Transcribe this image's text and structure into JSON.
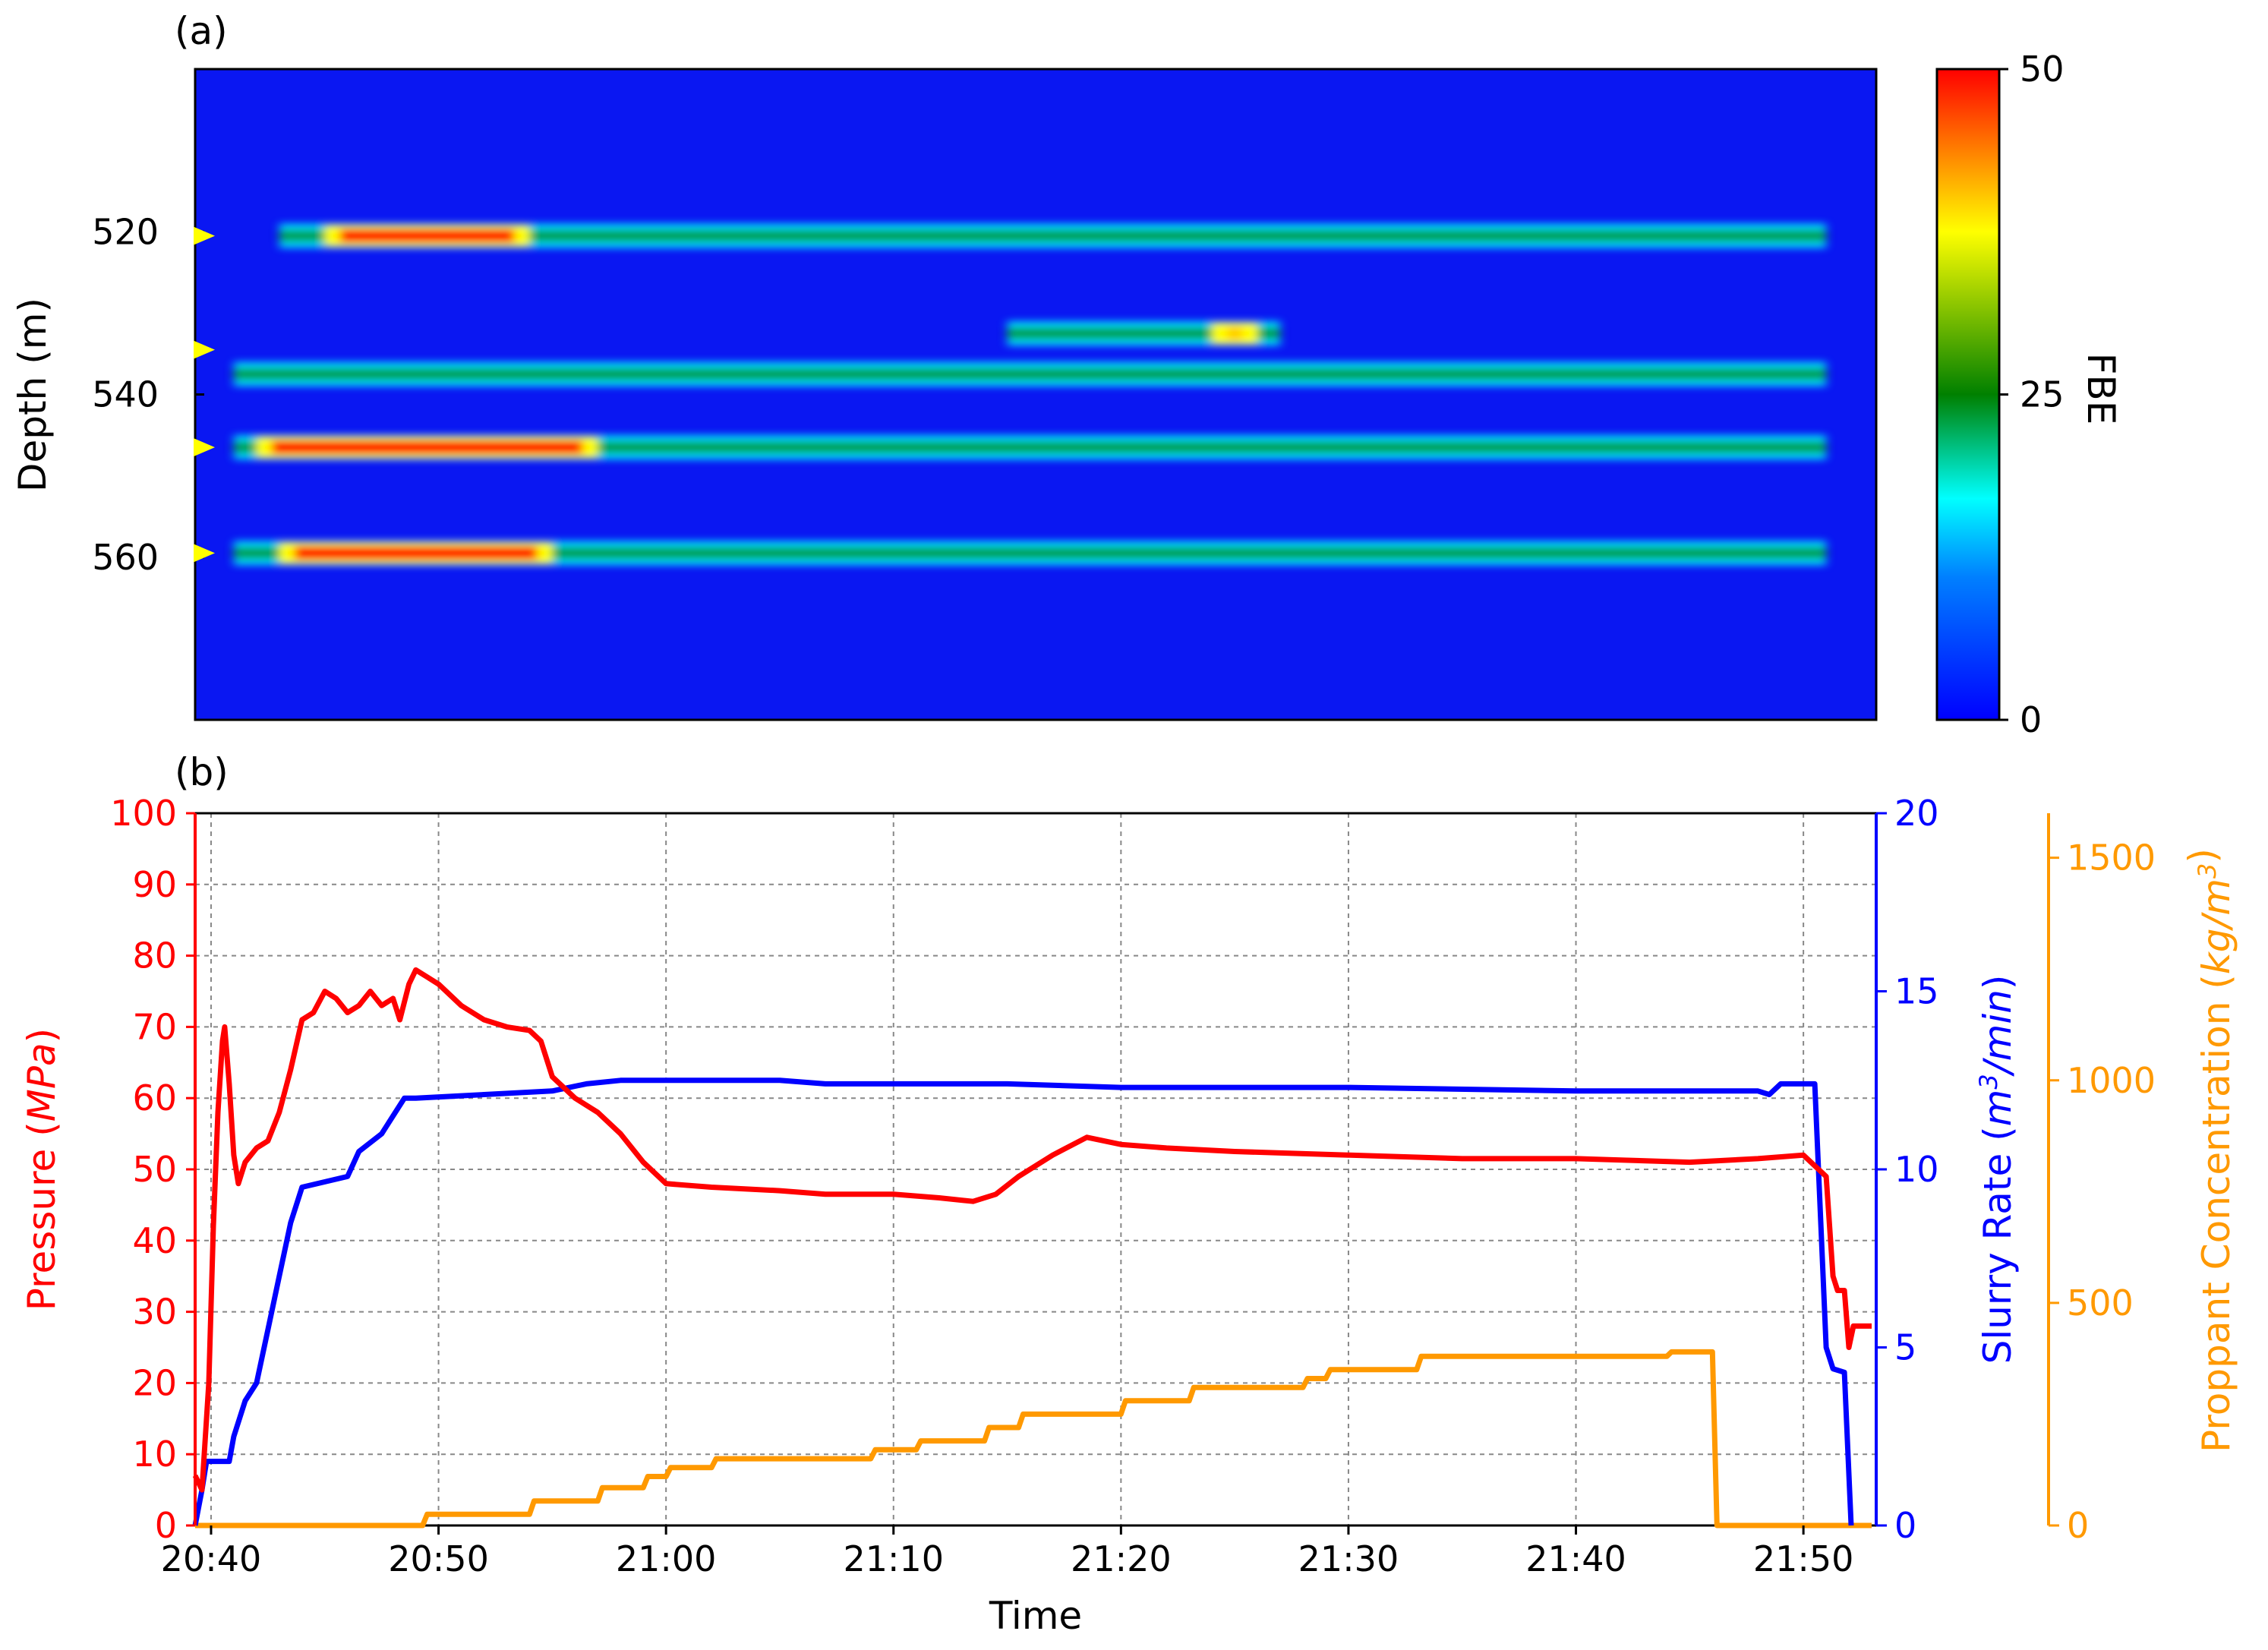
{
  "panel_a_label": "(a)",
  "panel_b_label": "(b)",
  "chart_data": [
    {
      "type": "heatmap",
      "panel": "(a)",
      "ylabel": "Depth (m)",
      "yticks": [
        "520",
        "540",
        "560"
      ],
      "ylim": [
        580,
        500
      ],
      "colorbar": {
        "label": "FBE",
        "ticks": [
          "50",
          "25",
          "0"
        ],
        "range": [
          0,
          50
        ]
      },
      "time_range": [
        "20:39",
        "21:53"
      ],
      "markers_depth_m": [
        520.5,
        534.5,
        546.5,
        559.5
      ],
      "bands": [
        {
          "depth_m": 520.5,
          "start": "20:43",
          "end": "21:51",
          "peak": "20:45-20:54",
          "peak_value": 50
        },
        {
          "depth_m": 532.5,
          "start": "21:15",
          "end": "21:27",
          "peak": "21:24-21:26",
          "peak_value": 40
        },
        {
          "depth_m": 537.5,
          "start": "20:41",
          "end": "21:51",
          "peak_value": 25
        },
        {
          "depth_m": 546.5,
          "start": "20:41",
          "end": "21:51",
          "peak": "20:42-20:57",
          "peak_value": 50
        },
        {
          "depth_m": 559.5,
          "start": "20:41",
          "end": "21:51",
          "peak": "20:43-20:55",
          "peak_value": 50
        }
      ]
    },
    {
      "type": "line",
      "panel": "(b)",
      "xlabel": "Time",
      "xticks": [
        "20:40",
        "20:50",
        "21:00",
        "21:10",
        "21:20",
        "21:30",
        "21:40",
        "21:50"
      ],
      "grid": true,
      "series": [
        {
          "color": "#ff0000",
          "axis_label": "Pressure",
          "axis_unit": "(MPa)",
          "ylim": [
            0,
            100
          ],
          "yticks": [
            "0",
            "10",
            "20",
            "30",
            "40",
            "50",
            "60",
            "70",
            "80",
            "90",
            "100"
          ],
          "points": [
            [
              "20:39.3",
              7
            ],
            [
              "20:39.6",
              5
            ],
            [
              "20:39.9",
              20
            ],
            [
              "20:40.1",
              42
            ],
            [
              "20:40.3",
              58
            ],
            [
              "20:40.5",
              68
            ],
            [
              "20:40.6",
              70
            ],
            [
              "20:40.8",
              62
            ],
            [
              "20:41.0",
              52
            ],
            [
              "20:41.2",
              48
            ],
            [
              "20:41.5",
              51
            ],
            [
              "20:42.0",
              53
            ],
            [
              "20:42.5",
              54
            ],
            [
              "20:43.0",
              58
            ],
            [
              "20:43.5",
              64
            ],
            [
              "20:44.0",
              71
            ],
            [
              "20:44.5",
              72
            ],
            [
              "20:45.0",
              75
            ],
            [
              "20:45.5",
              74
            ],
            [
              "20:46.0",
              72
            ],
            [
              "20:46.5",
              73
            ],
            [
              "20:47.0",
              75
            ],
            [
              "20:47.5",
              73
            ],
            [
              "20:48.0",
              74
            ],
            [
              "20:48.3",
              71
            ],
            [
              "20:48.7",
              76
            ],
            [
              "20:49.0",
              78
            ],
            [
              "20:49.5",
              77
            ],
            [
              "20:50.0",
              76
            ],
            [
              "20:51.0",
              73
            ],
            [
              "20:52.0",
              71
            ],
            [
              "20:53.0",
              70
            ],
            [
              "20:54.0",
              69.5
            ],
            [
              "20:54.5",
              68
            ],
            [
              "20:55.0",
              63
            ],
            [
              "20:56.0",
              60
            ],
            [
              "20:57.0",
              58
            ],
            [
              "20:58.0",
              55
            ],
            [
              "20:59.0",
              51
            ],
            [
              "21:00.0",
              48
            ],
            [
              "21:02.0",
              47.5
            ],
            [
              "21:05.0",
              47
            ],
            [
              "21:07.0",
              46.5
            ],
            [
              "21:10.0",
              46.5
            ],
            [
              "21:12.0",
              46
            ],
            [
              "21:13.5",
              45.5
            ],
            [
              "21:14.5",
              46.5
            ],
            [
              "21:15.5",
              49
            ],
            [
              "21:17.0",
              52
            ],
            [
              "21:18.5",
              54.5
            ],
            [
              "21:20.0",
              53.5
            ],
            [
              "21:22.0",
              53
            ],
            [
              "21:25.0",
              52.5
            ],
            [
              "21:30.0",
              52
            ],
            [
              "21:35.0",
              51.5
            ],
            [
              "21:40.0",
              51.5
            ],
            [
              "21:45.0",
              51
            ],
            [
              "21:48.0",
              51.5
            ],
            [
              "21:50.0",
              52
            ],
            [
              "21:51.0",
              49
            ],
            [
              "21:51.3",
              35
            ],
            [
              "21:51.5",
              33
            ],
            [
              "21:51.8",
              33
            ],
            [
              "21:52.0",
              25
            ],
            [
              "21:52.2",
              28
            ],
            [
              "21:53.0",
              28
            ]
          ]
        },
        {
          "color": "#0000ff",
          "axis_label": "Slurry Rate",
          "axis_unit": "(m3/min)",
          "ylim": [
            0,
            20
          ],
          "yticks": [
            "0",
            "5",
            "10",
            "15",
            "20"
          ],
          "points": [
            [
              "20:39.3",
              0
            ],
            [
              "20:39.6",
              1
            ],
            [
              "20:39.8",
              1.8
            ],
            [
              "20:40.8",
              1.8
            ],
            [
              "20:41.0",
              2.5
            ],
            [
              "20:41.5",
              3.5
            ],
            [
              "20:42.0",
              4
            ],
            [
              "20:42.5",
              5.5
            ],
            [
              "20:43.0",
              7
            ],
            [
              "20:43.5",
              8.5
            ],
            [
              "20:44.0",
              9.5
            ],
            [
              "20:46.0",
              9.8
            ],
            [
              "20:46.5",
              10.5
            ],
            [
              "20:47.5",
              11
            ],
            [
              "20:48.5",
              12
            ],
            [
              "20:49.0",
              12
            ],
            [
              "20:55.0",
              12.2
            ],
            [
              "20:56.5",
              12.4
            ],
            [
              "20:58.0",
              12.5
            ],
            [
              "21:05.0",
              12.5
            ],
            [
              "21:07.0",
              12.4
            ],
            [
              "21:15.0",
              12.4
            ],
            [
              "21:20.0",
              12.3
            ],
            [
              "21:30.0",
              12.3
            ],
            [
              "21:40.0",
              12.2
            ],
            [
              "21:48.0",
              12.2
            ],
            [
              "21:48.5",
              12.1
            ],
            [
              "21:49.0",
              12.4
            ],
            [
              "21:50.5",
              12.4
            ],
            [
              "21:51.0",
              5
            ],
            [
              "21:51.3",
              4.4
            ],
            [
              "21:51.8",
              4.3
            ],
            [
              "21:52.1",
              0
            ]
          ]
        },
        {
          "color": "#ff9900",
          "axis_label": "Proppant Concentration",
          "axis_unit": "(kg/m3)",
          "ylim": [
            0,
            1600
          ],
          "yticks": [
            "0",
            "500",
            "1000",
            "1500"
          ],
          "points": [
            [
              "20:39.3",
              0
            ],
            [
              "20:49.3",
              0
            ],
            [
              "20:49.5",
              25
            ],
            [
              "20:54.0",
              25
            ],
            [
              "20:54.2",
              55
            ],
            [
              "20:57.0",
              55
            ],
            [
              "20:57.2",
              85
            ],
            [
              "20:59.0",
              85
            ],
            [
              "20:59.2",
              110
            ],
            [
              "21:00.0",
              110
            ],
            [
              "21:00.2",
              130
            ],
            [
              "21:02.0",
              130
            ],
            [
              "21:02.2",
              150
            ],
            [
              "21:09.0",
              150
            ],
            [
              "21:09.2",
              170
            ],
            [
              "21:11.0",
              170
            ],
            [
              "21:11.2",
              190
            ],
            [
              "21:14.0",
              190
            ],
            [
              "21:14.2",
              220
            ],
            [
              "21:15.5",
              220
            ],
            [
              "21:15.7",
              250
            ],
            [
              "21:20.0",
              250
            ],
            [
              "21:20.2",
              280
            ],
            [
              "21:23.0",
              280
            ],
            [
              "21:23.2",
              310
            ],
            [
              "21:28.0",
              310
            ],
            [
              "21:28.2",
              330
            ],
            [
              "21:29.0",
              330
            ],
            [
              "21:29.2",
              350
            ],
            [
              "21:33.0",
              350
            ],
            [
              "21:33.2",
              380
            ],
            [
              "21:44.0",
              380
            ],
            [
              "21:44.2",
              390
            ],
            [
              "21:46.0",
              390
            ],
            [
              "21:46.2",
              0
            ],
            [
              "21:53.0",
              0
            ]
          ]
        }
      ]
    }
  ]
}
